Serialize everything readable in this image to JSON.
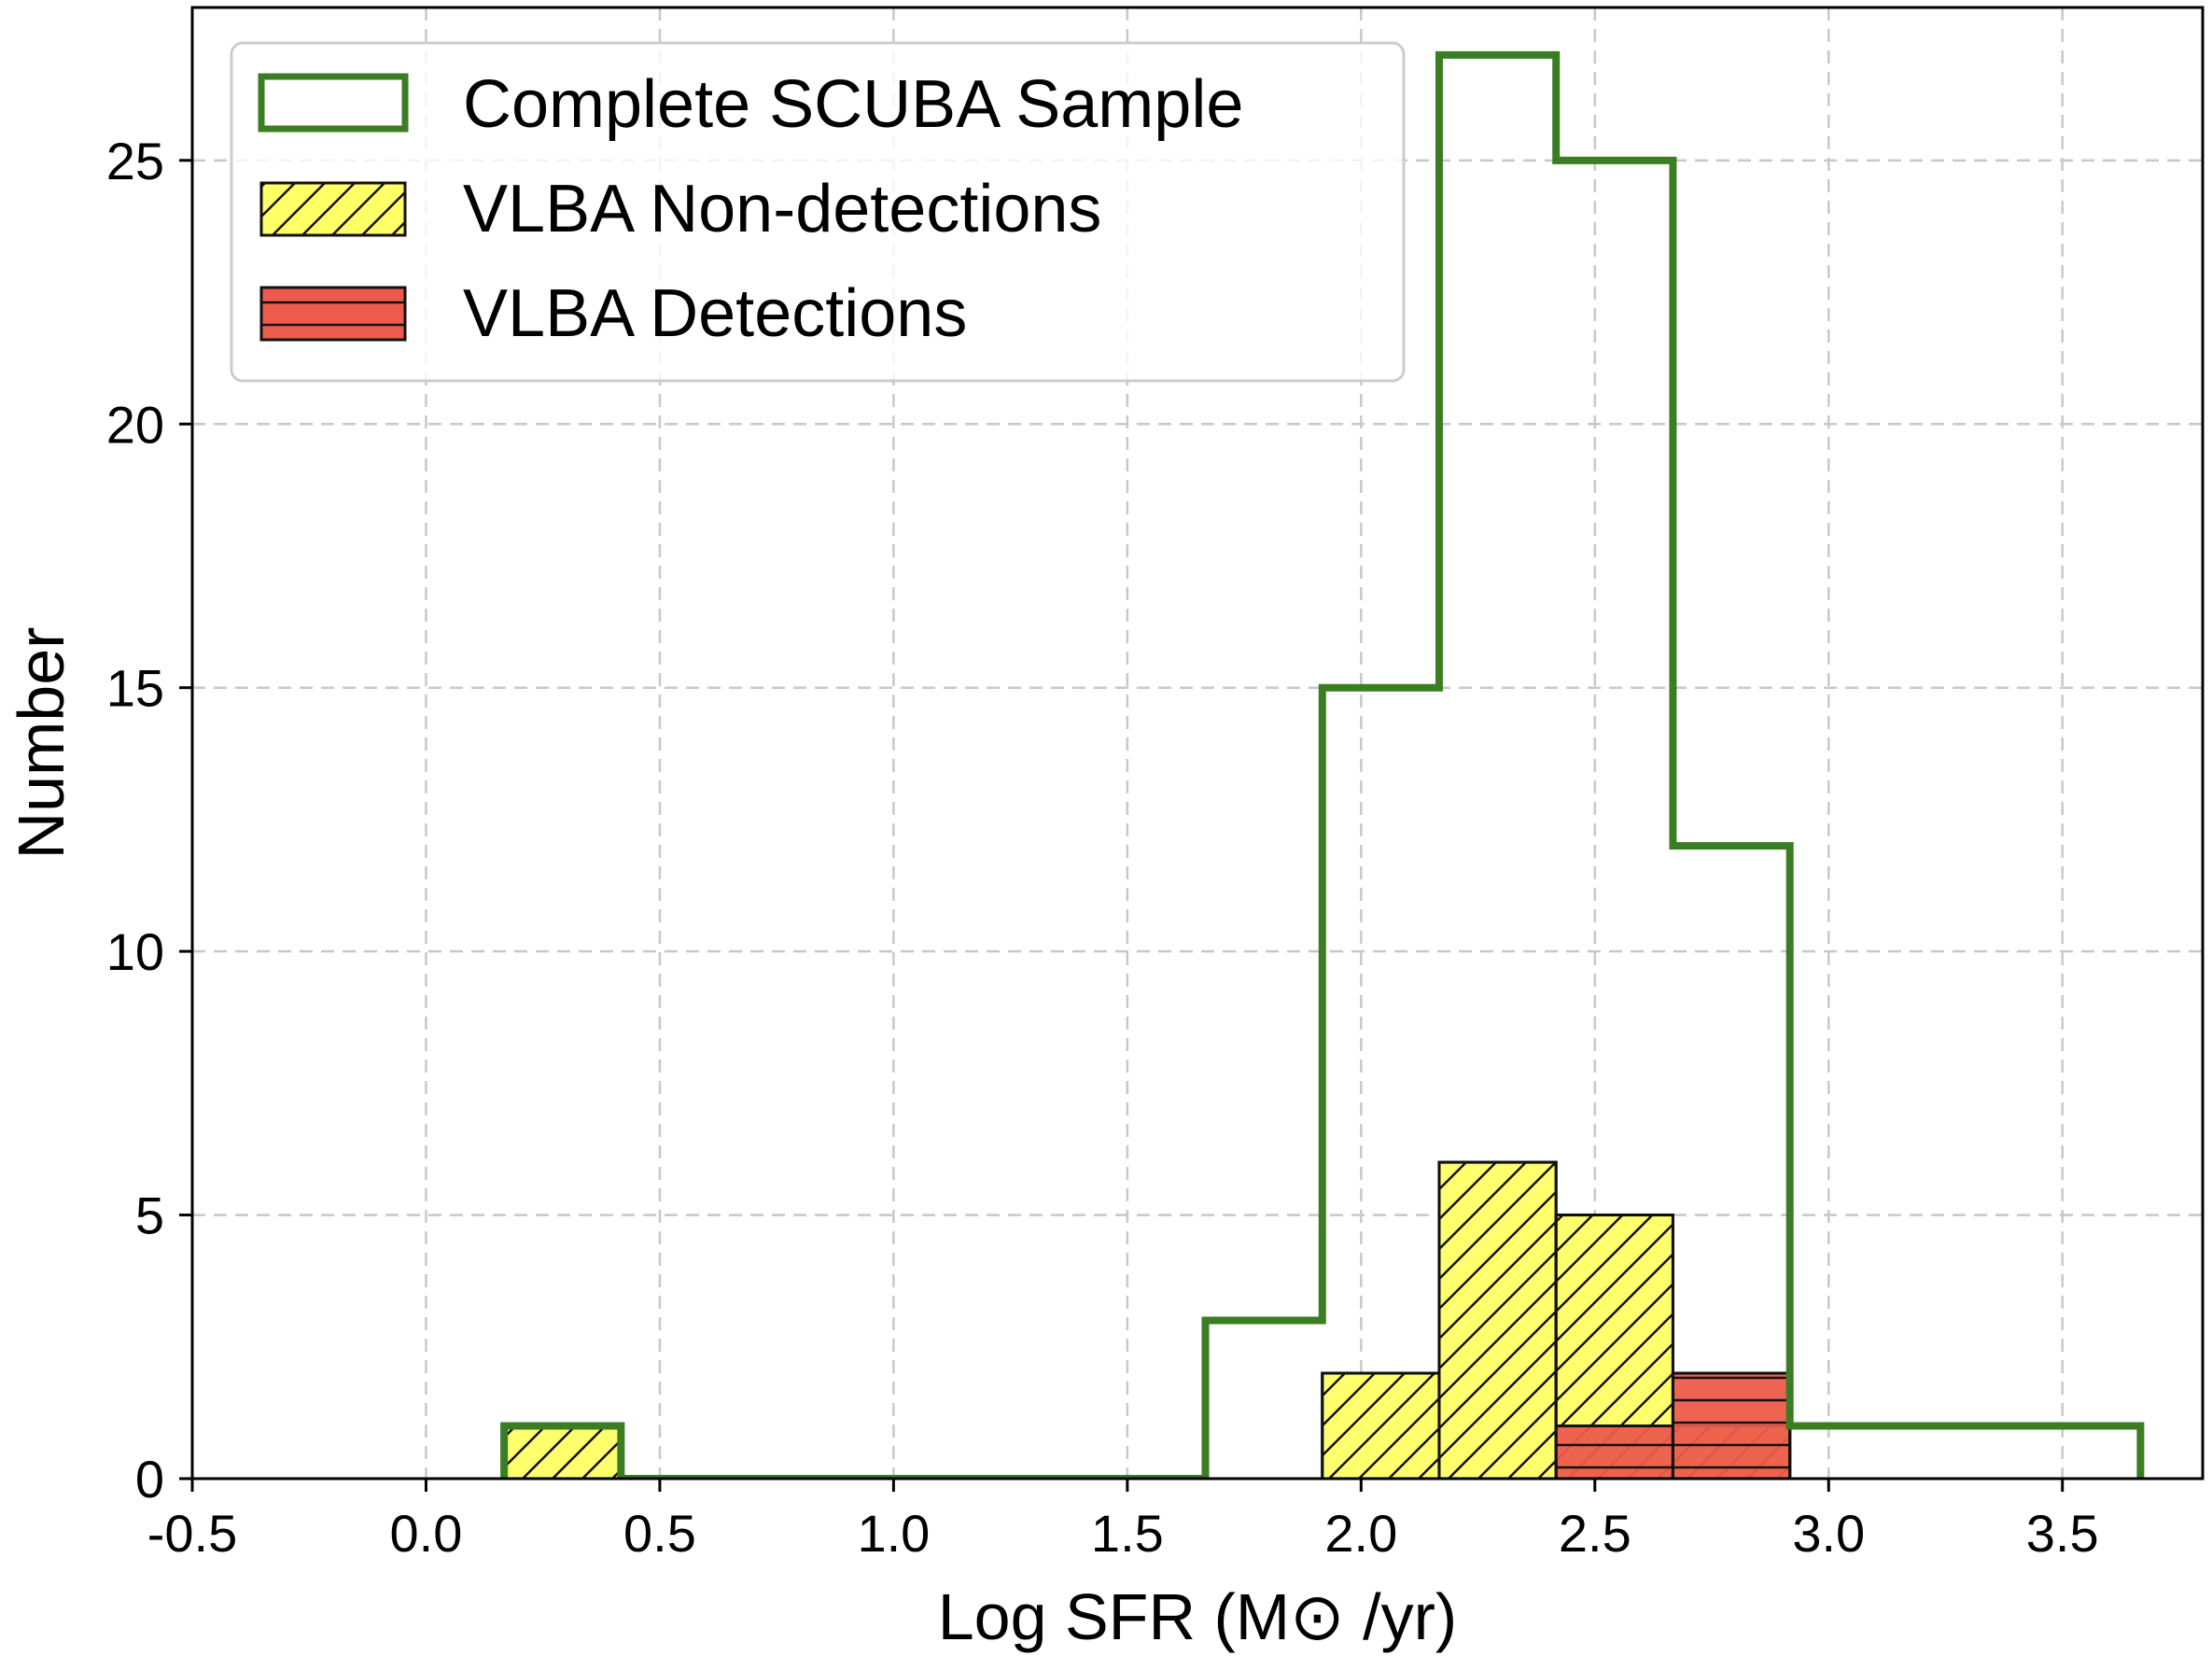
{
  "chart_data": {
    "type": "histogram",
    "xlabel": "Log SFR (M⊙ /yr)",
    "ylabel": "Number",
    "xlim": [
      -0.5,
      3.8
    ],
    "ylim": [
      0,
      27.9
    ],
    "grid": true,
    "xticks": [
      -0.5,
      0.0,
      0.5,
      1.0,
      1.5,
      2.0,
      2.5,
      3.0,
      3.5
    ],
    "xtick_labels": [
      "-0.5",
      "0.0",
      "0.5",
      "1.0",
      "1.5",
      "2.0",
      "2.5",
      "3.0",
      "3.5"
    ],
    "yticks": [
      0,
      5,
      10,
      15,
      20,
      25
    ],
    "ytick_labels": [
      "0",
      "5",
      "10",
      "15",
      "20",
      "25"
    ],
    "bin_edges": [
      0.167,
      0.417,
      0.667,
      0.917,
      1.167,
      1.417,
      1.667,
      1.917,
      2.167,
      2.417,
      2.667,
      2.917,
      3.167,
      3.417,
      3.667
    ],
    "legend_position": "upper-left",
    "series": [
      {
        "name": "Complete SCUBA Sample",
        "style": "step",
        "color": "#3a7d22",
        "counts": [
          1,
          0,
          0,
          0,
          0,
          0,
          3,
          15,
          27,
          25,
          12,
          1,
          1,
          1
        ]
      },
      {
        "name": "VLBA Non-detections",
        "style": "bar",
        "hatch": "diagonal",
        "color": "#ffff66",
        "counts": [
          1,
          0,
          0,
          0,
          0,
          0,
          0,
          2,
          6,
          5,
          1,
          0,
          0,
          0
        ]
      },
      {
        "name": "VLBA Detections",
        "style": "bar",
        "hatch": "horizontal",
        "color": "#ec5b4b",
        "counts": [
          0,
          0,
          0,
          0,
          0,
          0,
          0,
          0,
          0,
          1,
          2,
          0,
          0,
          0
        ]
      }
    ]
  }
}
